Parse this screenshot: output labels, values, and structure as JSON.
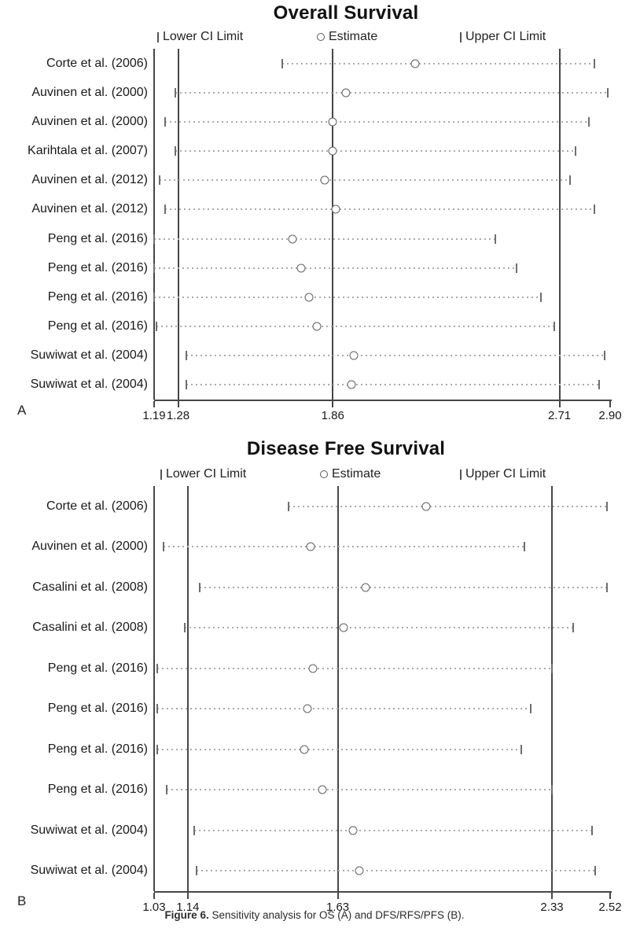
{
  "figure": {
    "caption_bold": "Figure 6.",
    "caption_rest": " Sensitivity analysis for OS (A) and DFS/RFS/PFS (B)."
  },
  "colors": {
    "text": "#1a1a1a",
    "ref_line": "#474747",
    "dotted_ci_line": "#ababab",
    "ci_tick": "#6e6e6e",
    "estimate_circle_stroke": "#616161",
    "background": "#ffffff"
  },
  "chart_data": [
    {
      "type": "scatter",
      "subtype": "forest-sensitivity-plot",
      "panel_label": "A",
      "title": "Overall Survival",
      "legend": [
        "Lower CI Limit",
        "Estimate",
        "Upper CI Limit"
      ],
      "legend_glyphs": [
        "tick-icon",
        "circle-icon",
        "tick-icon"
      ],
      "xlim": [
        1.19,
        2.9
      ],
      "xticks": [
        "1.19",
        "1.28",
        "1.86",
        "2.71",
        "2.90"
      ],
      "ref_lines_x": [
        1.28,
        1.86,
        2.71
      ],
      "grid": false,
      "legend_position": "top",
      "studies": [
        "Corte et al. (2006)",
        "Auvinen et al. (2000)",
        "Auvinen et al. (2000)",
        "Karihtala et al. (2007)",
        "Auvinen et al. (2012)",
        "Auvinen et al. (2012)",
        "Peng et al. (2016)",
        "Peng et al. (2016)",
        "Peng et al. (2016)",
        "Peng et al. (2016)",
        "Suwiwat et al. (2004)",
        "Suwiwat et al. (2004)"
      ],
      "series": [
        {
          "name": "Lower CI Limit",
          "values": [
            1.67,
            1.27,
            1.23,
            1.27,
            1.21,
            1.23,
            1.19,
            1.19,
            1.19,
            1.2,
            1.31,
            1.31
          ]
        },
        {
          "name": "Estimate",
          "values": [
            2.17,
            1.91,
            1.86,
            1.86,
            1.83,
            1.87,
            1.71,
            1.74,
            1.77,
            1.8,
            1.94,
            1.93
          ]
        },
        {
          "name": "Upper CI Limit",
          "values": [
            2.84,
            2.89,
            2.82,
            2.77,
            2.75,
            2.84,
            2.47,
            2.55,
            2.64,
            2.69,
            2.88,
            2.86
          ]
        }
      ]
    },
    {
      "type": "scatter",
      "subtype": "forest-sensitivity-plot",
      "panel_label": "B",
      "title": "Disease Free Survival",
      "legend": [
        "Lower CI Limit",
        "Estimate",
        "Upper CI Limit"
      ],
      "legend_glyphs": [
        "tick-icon",
        "circle-icon",
        "tick-icon"
      ],
      "xlim": [
        1.03,
        2.52
      ],
      "xticks": [
        "1.03",
        "1.14",
        "1.63",
        "2.33",
        "2.52"
      ],
      "ref_lines_x": [
        1.14,
        1.63,
        2.33
      ],
      "grid": false,
      "legend_position": "top",
      "studies": [
        "Corte et al. (2006)",
        "Auvinen et al. (2000)",
        "Casalini et al. (2008)",
        "Casalini et al. (2008)",
        "Peng et al. (2016)",
        "Peng et al. (2016)",
        "Peng et al. (2016)",
        "Peng et al. (2016)",
        "Suwiwat et al. (2004)",
        "Suwiwat et al. (2004)"
      ],
      "series": [
        {
          "name": "Lower CI Limit",
          "values": [
            1.47,
            1.06,
            1.18,
            1.13,
            1.04,
            1.04,
            1.04,
            1.07,
            1.16,
            1.17
          ]
        },
        {
          "name": "Estimate",
          "values": [
            1.92,
            1.54,
            1.72,
            1.65,
            1.55,
            1.53,
            1.52,
            1.58,
            1.68,
            1.7
          ]
        },
        {
          "name": "Upper CI Limit",
          "values": [
            2.51,
            2.24,
            2.51,
            2.4,
            2.33,
            2.26,
            2.23,
            2.33,
            2.46,
            2.47
          ]
        }
      ]
    }
  ]
}
